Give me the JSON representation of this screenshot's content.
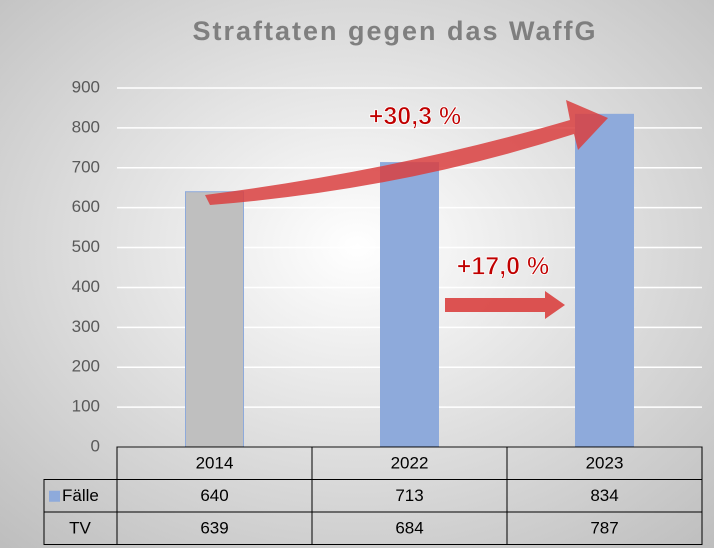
{
  "chart_data": {
    "type": "bar",
    "title": "Straftaten gegen das WaffG",
    "categories": [
      "2014",
      "2022",
      "2023"
    ],
    "series": [
      {
        "name": "Fälle",
        "color": "#8eaadb",
        "point_colors": [
          "#bfbfbf",
          "#8eaadb",
          "#8eaadb"
        ],
        "values": [
          640,
          713,
          834
        ]
      },
      {
        "name": "TV",
        "values": [
          639,
          684,
          787
        ]
      }
    ],
    "annotations": [
      "+30,3 %",
      "+17,0 %"
    ],
    "ylim": [
      0,
      900
    ],
    "yticks": [
      0,
      100,
      200,
      300,
      400,
      500,
      600,
      700,
      800,
      900
    ],
    "grid": true
  }
}
